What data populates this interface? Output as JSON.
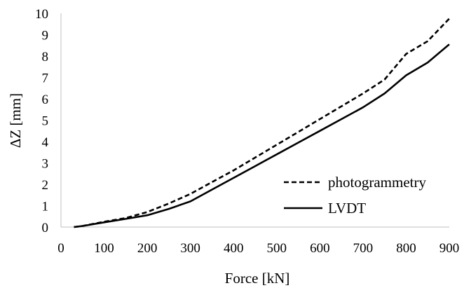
{
  "chart_data": {
    "type": "line",
    "title": "",
    "xlabel": "Force [kN]",
    "ylabel": "ΔZ [mm]",
    "xlim": [
      0,
      900
    ],
    "ylim": [
      0,
      10
    ],
    "x_ticks": [
      "0",
      "100",
      "200",
      "300",
      "400",
      "500",
      "600",
      "700",
      "800",
      "900"
    ],
    "y_ticks": [
      "0",
      "1",
      "2",
      "3",
      "4",
      "5",
      "6",
      "7",
      "8",
      "9",
      "10"
    ],
    "grid": false,
    "legend_position": "bottom-right",
    "series": [
      {
        "name": "photogrammetry",
        "style": "dashed",
        "color": "#000000",
        "x": [
          30,
          50,
          100,
          150,
          200,
          250,
          300,
          350,
          400,
          450,
          500,
          550,
          600,
          650,
          700,
          750,
          800,
          850,
          900
        ],
        "y": [
          0,
          0.05,
          0.25,
          0.42,
          0.7,
          1.1,
          1.55,
          2.1,
          2.65,
          3.25,
          3.85,
          4.45,
          5.05,
          5.65,
          6.25,
          6.9,
          8.1,
          8.7,
          9.75
        ]
      },
      {
        "name": "LVDT",
        "style": "solid",
        "color": "#000000",
        "x": [
          30,
          50,
          100,
          150,
          200,
          250,
          300,
          350,
          400,
          450,
          500,
          550,
          600,
          650,
          700,
          750,
          800,
          850,
          900
        ],
        "y": [
          0,
          0.05,
          0.22,
          0.38,
          0.55,
          0.85,
          1.2,
          1.75,
          2.3,
          2.85,
          3.4,
          3.95,
          4.5,
          5.05,
          5.6,
          6.25,
          7.1,
          7.7,
          8.55
        ]
      }
    ]
  }
}
